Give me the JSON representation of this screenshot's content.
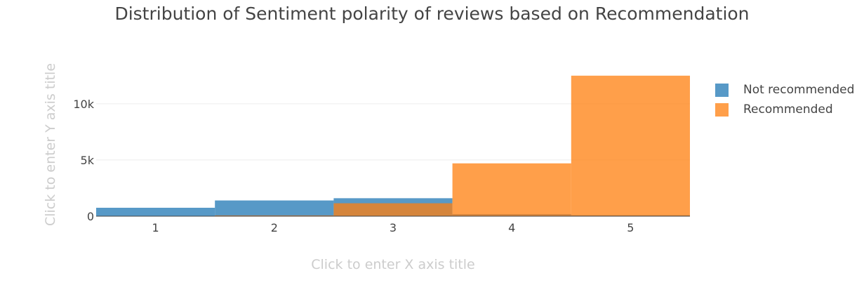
{
  "title": "Distribution of Sentiment polarity of reviews based on Recommendation",
  "xaxis_title": "Click to enter X axis title",
  "yaxis_title": "Click to enter Y axis title",
  "colors": {
    "not_recommended": "#1f77b4",
    "recommended": "#ff7f0e"
  },
  "chart_data": {
    "type": "bar",
    "barmode": "overlay",
    "categories": [
      "1",
      "2",
      "3",
      "4",
      "5"
    ],
    "series": [
      {
        "name": "Not recommended",
        "values": [
          750,
          1400,
          1600,
          180,
          90
        ]
      },
      {
        "name": "Recommended",
        "values": [
          30,
          70,
          1150,
          4700,
          12500
        ]
      }
    ],
    "ylim": [
      0,
      13300
    ],
    "yticks": [
      0,
      5000,
      10000
    ],
    "ytick_labels": [
      "0",
      "5k",
      "10k"
    ],
    "xlabel": "Click to enter X axis title",
    "ylabel": "Click to enter Y axis title",
    "grid": true,
    "legend_position": "right"
  }
}
